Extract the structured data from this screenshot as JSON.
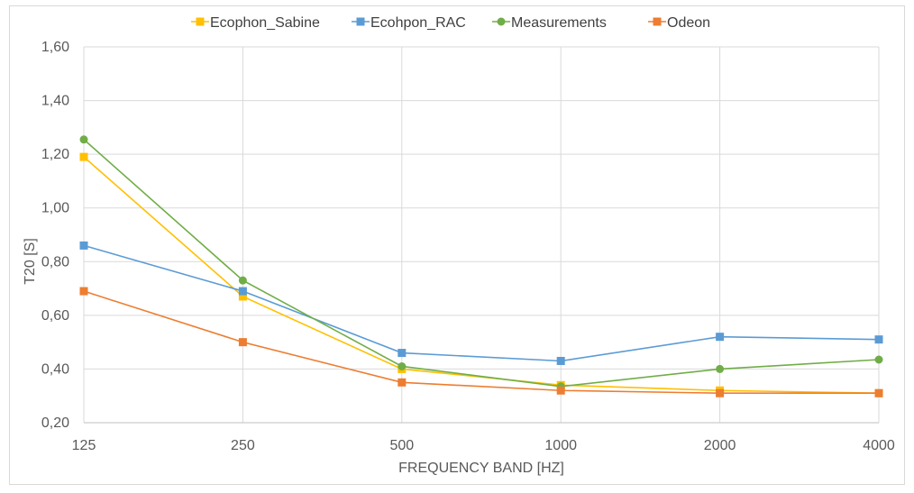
{
  "chart_data": {
    "type": "line",
    "categories": [
      "125",
      "250",
      "500",
      "1000",
      "2000",
      "4000"
    ],
    "xlabel": "FREQUENCY BAND [HZ]",
    "ylabel": "T20 [S]",
    "ylim": [
      0.2,
      1.6
    ],
    "yticks": [
      "0,20",
      "0,40",
      "0,60",
      "0,80",
      "1,00",
      "1,20",
      "1,40",
      "1,60"
    ],
    "grid": true,
    "legend": "top",
    "series": [
      {
        "name": "Ecophon_Sabine",
        "color": "#ffc000",
        "marker": "square",
        "values": [
          1.19,
          0.67,
          0.4,
          0.34,
          0.32,
          0.31
        ]
      },
      {
        "name": "Ecohpon_RAC",
        "color": "#5b9bd5",
        "marker": "square",
        "values": [
          0.86,
          0.69,
          0.46,
          0.43,
          0.52,
          0.51
        ]
      },
      {
        "name": "Measurements",
        "color": "#70ad47",
        "marker": "circle",
        "values": [
          1.255,
          0.73,
          0.41,
          0.335,
          0.4,
          0.435
        ]
      },
      {
        "name": "Odeon",
        "color": "#ed7d31",
        "marker": "square",
        "values": [
          0.69,
          0.5,
          0.35,
          0.32,
          0.31,
          0.31
        ]
      }
    ]
  }
}
